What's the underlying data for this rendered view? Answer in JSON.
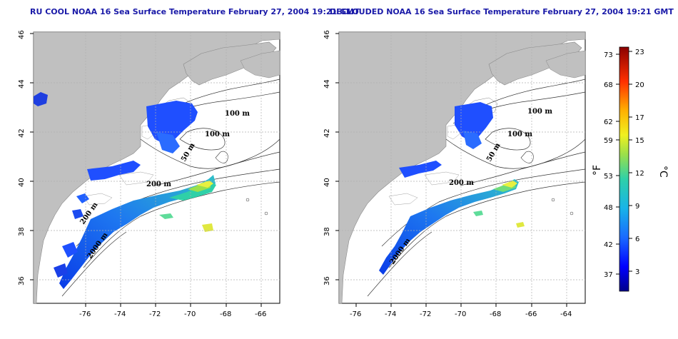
{
  "panels": [
    {
      "id": "left",
      "title": "RU COOL NOAA 16 Sea Surface Temperature February 27, 2004 19:21 GMT",
      "contour_labels": [
        "100 m",
        "100 m",
        "50 m",
        "200 m",
        "2000 m",
        "200 m"
      ]
    },
    {
      "id": "right",
      "title": "DECLOUDED NOAA 16 Sea Surface Temperature February 27, 2004 19:21 GMT",
      "contour_labels": [
        "100 m",
        "100 m",
        "50 m",
        "200 m",
        "2000 m"
      ]
    }
  ],
  "axes": {
    "lon_ticks": [
      "-76",
      "-74",
      "-72",
      "-70",
      "-68",
      "-66",
      "-64"
    ],
    "lat_ticks": [
      "46",
      "44",
      "42",
      "40",
      "38",
      "36"
    ],
    "lon_range": [
      -77,
      -63
    ],
    "lat_range": [
      35,
      46
    ]
  },
  "colorbar": {
    "fahrenheit_ticks": [
      "73",
      "68",
      "62",
      "59",
      "53",
      "48",
      "42",
      "37"
    ],
    "celsius_ticks": [
      "23",
      "20",
      "17",
      "15",
      "12",
      "9",
      "6",
      "3"
    ],
    "fahrenheit_unit": "°F",
    "celsius_unit": "°C"
  },
  "colors": {
    "land": "#c0c0c0",
    "grid": "#b0b0b0",
    "title": "#1a1aa8"
  }
}
